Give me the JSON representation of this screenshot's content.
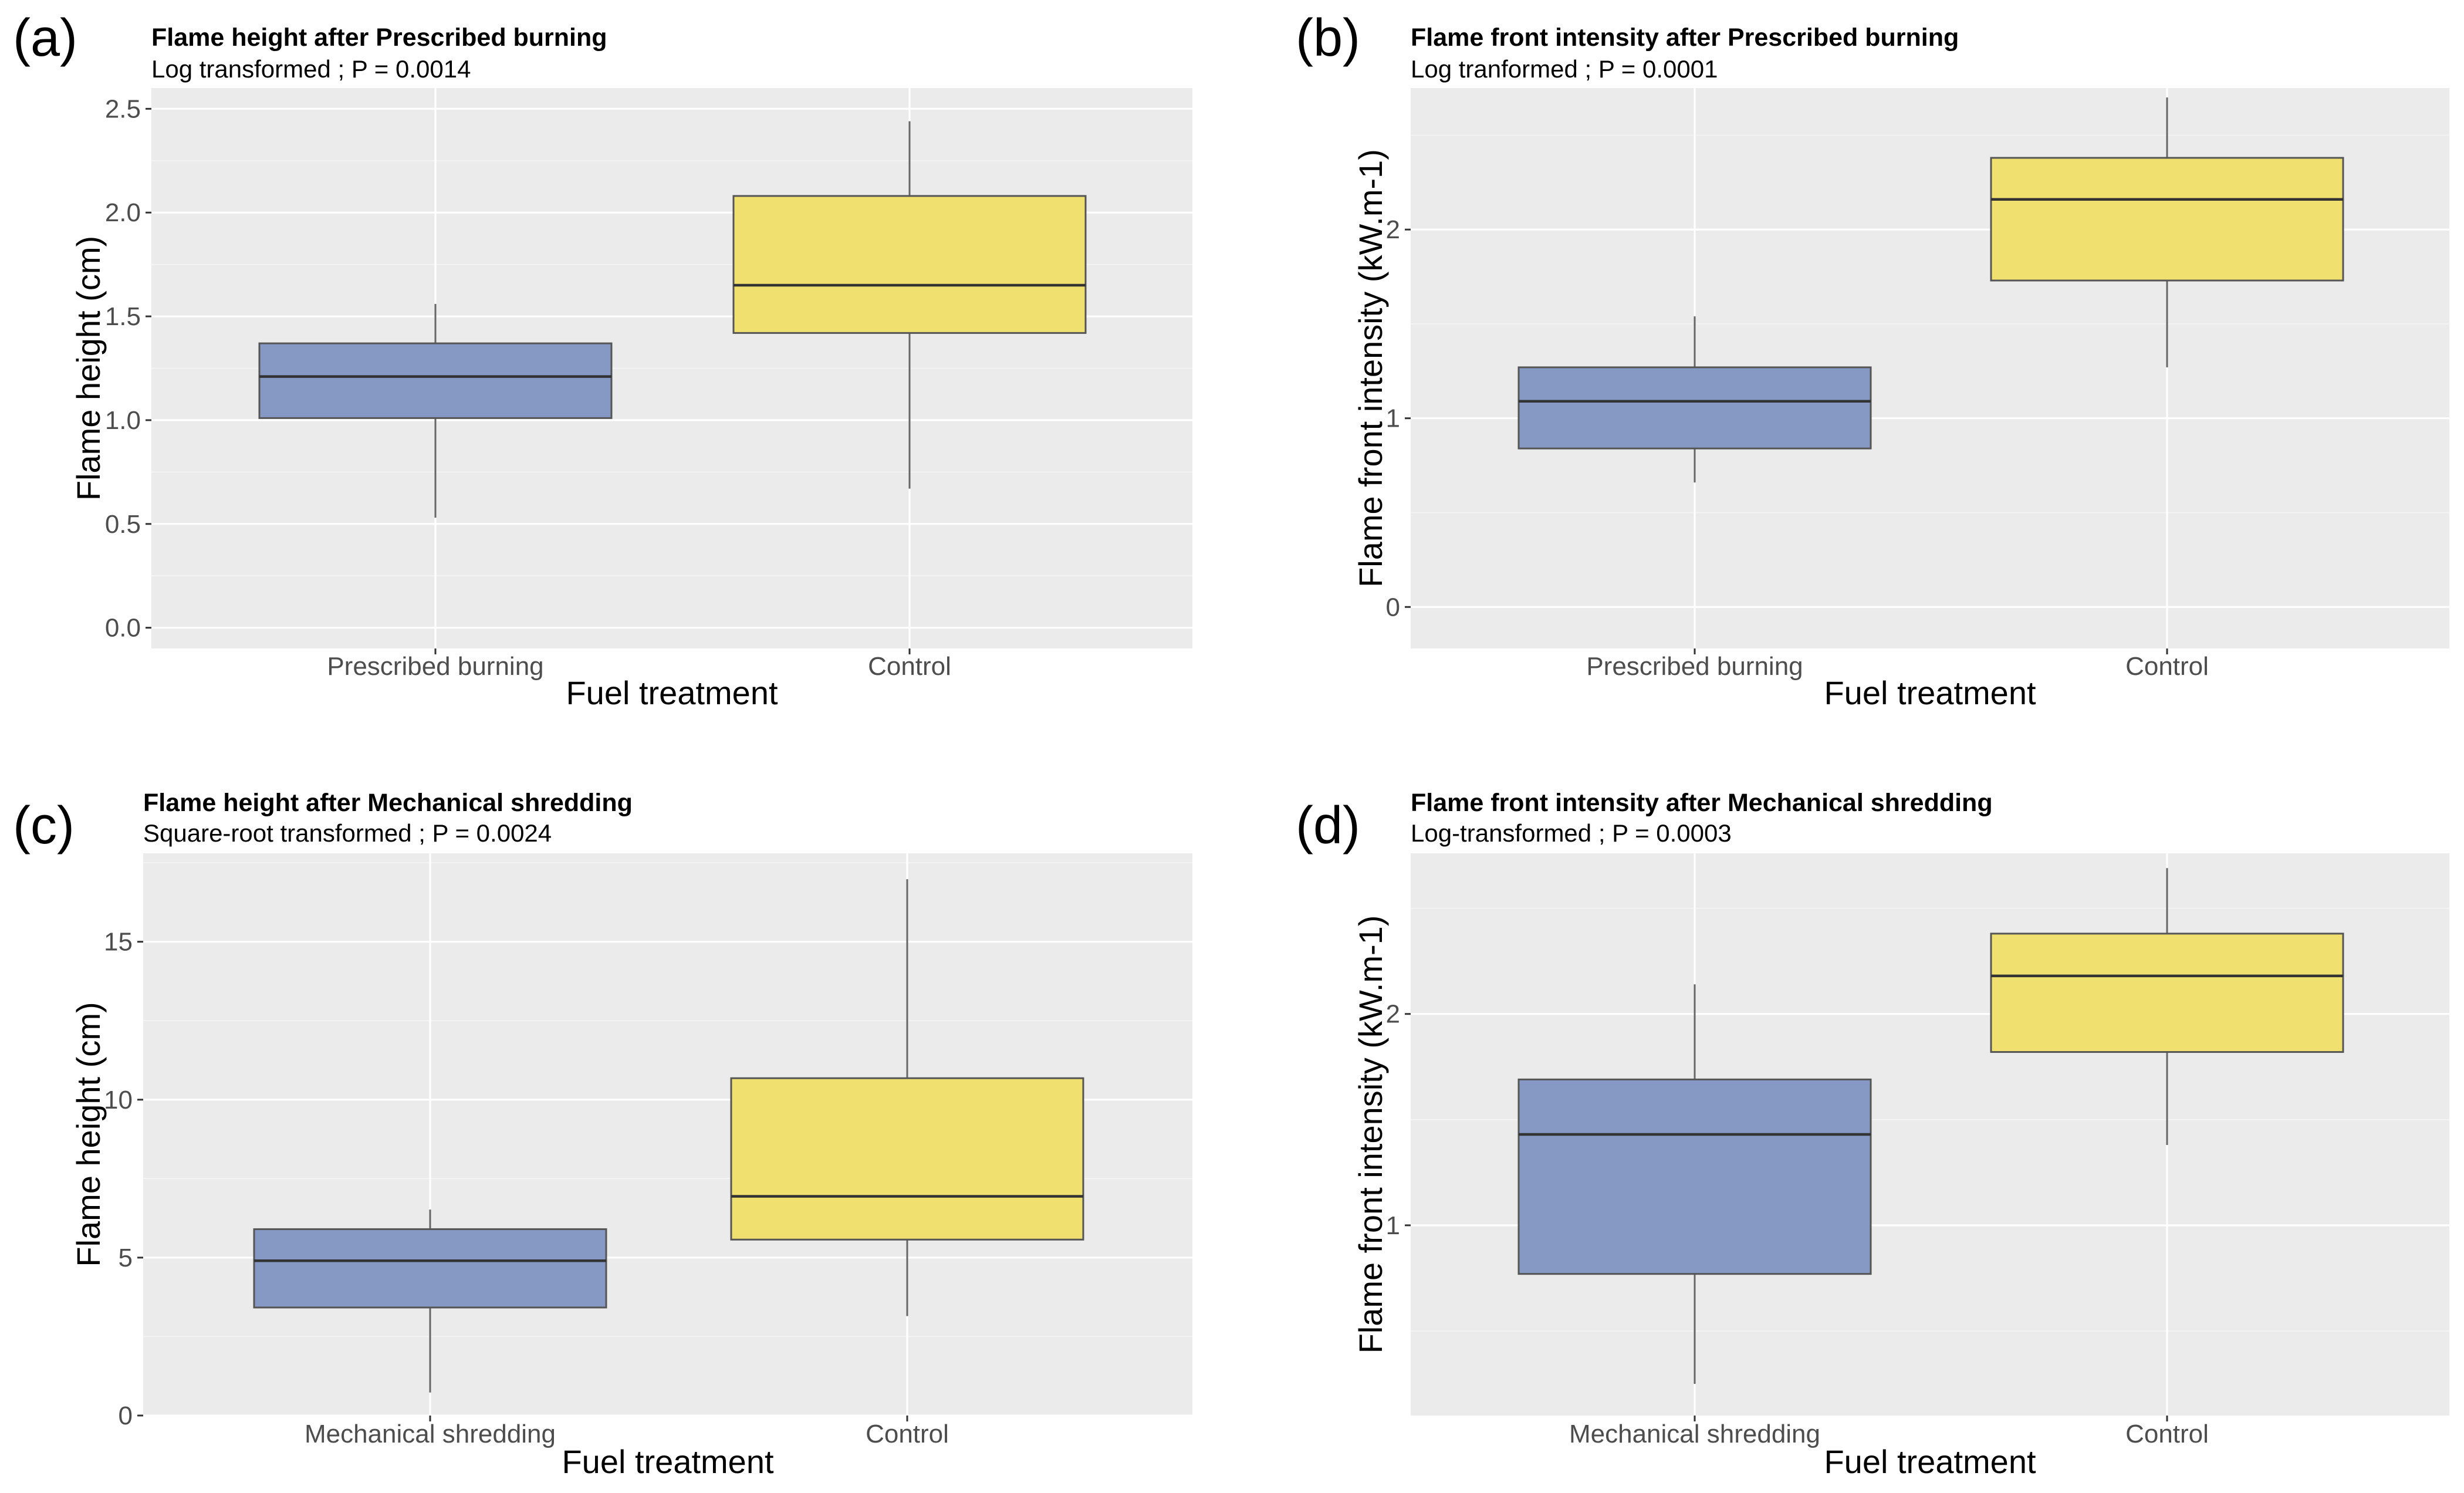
{
  "colors": {
    "treatment_box": "#8599c4",
    "control_box": "#efe070",
    "panel_bg": "#ebebeb"
  },
  "chart_data": [
    {
      "panel_label": "(a)",
      "type": "boxplot",
      "title": "Flame height after Prescribed burning",
      "subtitle": "Log transformed ; P = 0.0014",
      "xlabel": "Fuel treatment",
      "ylabel": "Flame height (cm)",
      "ylim": [
        -0.1,
        2.6
      ],
      "yticks": [
        0.0,
        0.5,
        1.0,
        1.5,
        2.0,
        2.5
      ],
      "ytick_labels": [
        "0.0",
        "0.5",
        "1.0",
        "1.5",
        "2.0",
        "2.5"
      ],
      "categories": [
        "Prescribed burning",
        "Control"
      ],
      "boxes": [
        {
          "category": "Prescribed burning",
          "min": 0.53,
          "q1": 1.01,
          "median": 1.21,
          "q3": 1.37,
          "max": 1.56
        },
        {
          "category": "Control",
          "min": 0.67,
          "q1": 1.42,
          "median": 1.65,
          "q3": 2.08,
          "max": 2.44
        }
      ]
    },
    {
      "panel_label": "(b)",
      "type": "boxplot",
      "title": "Flame front intensity after Prescribed burning",
      "subtitle": "Log tranformed ; P = 0.0001",
      "xlabel": "Fuel treatment",
      "ylabel": "Flame front intensity (kW.m-1)",
      "ylim": [
        -0.22,
        2.75
      ],
      "yticks": [
        0,
        1,
        2
      ],
      "ytick_labels": [
        "0",
        "1",
        "2"
      ],
      "categories": [
        "Prescribed burning",
        "Control"
      ],
      "boxes": [
        {
          "category": "Prescribed burning",
          "min": 0.66,
          "q1": 0.84,
          "median": 1.09,
          "q3": 1.27,
          "max": 1.54
        },
        {
          "category": "Control",
          "min": 1.27,
          "q1": 1.73,
          "median": 2.16,
          "q3": 2.38,
          "max": 2.7
        }
      ]
    },
    {
      "panel_label": "(c)",
      "type": "boxplot",
      "title": "Flame height after Mechanical shredding",
      "subtitle": "Square-root transformed ; P = 0.0024",
      "xlabel": "Fuel treatment",
      "ylabel": "Flame height (cm)",
      "ylim": [
        0,
        17.8
      ],
      "yticks": [
        0,
        5,
        10,
        15
      ],
      "ytick_labels": [
        "0",
        "5",
        "10",
        "15"
      ],
      "categories": [
        "Mechanical shredding",
        "Control"
      ],
      "boxes": [
        {
          "category": "Mechanical shredding",
          "min": 0.73,
          "q1": 3.42,
          "median": 4.9,
          "q3": 5.9,
          "max": 6.52
        },
        {
          "category": "Control",
          "min": 3.15,
          "q1": 5.57,
          "median": 6.94,
          "q3": 10.68,
          "max": 16.98
        }
      ]
    },
    {
      "panel_label": "(d)",
      "type": "boxplot",
      "title": "Flame front intensity after Mechanical shredding",
      "subtitle": "Log-transformed ; P = 0.0003",
      "xlabel": "Fuel treatment",
      "ylabel": "Flame front intensity (kW.m-1)",
      "ylim": [
        0.1,
        2.76
      ],
      "yticks": [
        1,
        2
      ],
      "ytick_labels": [
        "1",
        "2"
      ],
      "categories": [
        "Mechanical shredding",
        "Control"
      ],
      "boxes": [
        {
          "category": "Mechanical shredding",
          "min": 0.25,
          "q1": 0.77,
          "median": 1.43,
          "q3": 1.69,
          "max": 2.14
        },
        {
          "category": "Control",
          "min": 1.38,
          "q1": 1.82,
          "median": 2.18,
          "q3": 2.38,
          "max": 2.69
        }
      ]
    }
  ]
}
